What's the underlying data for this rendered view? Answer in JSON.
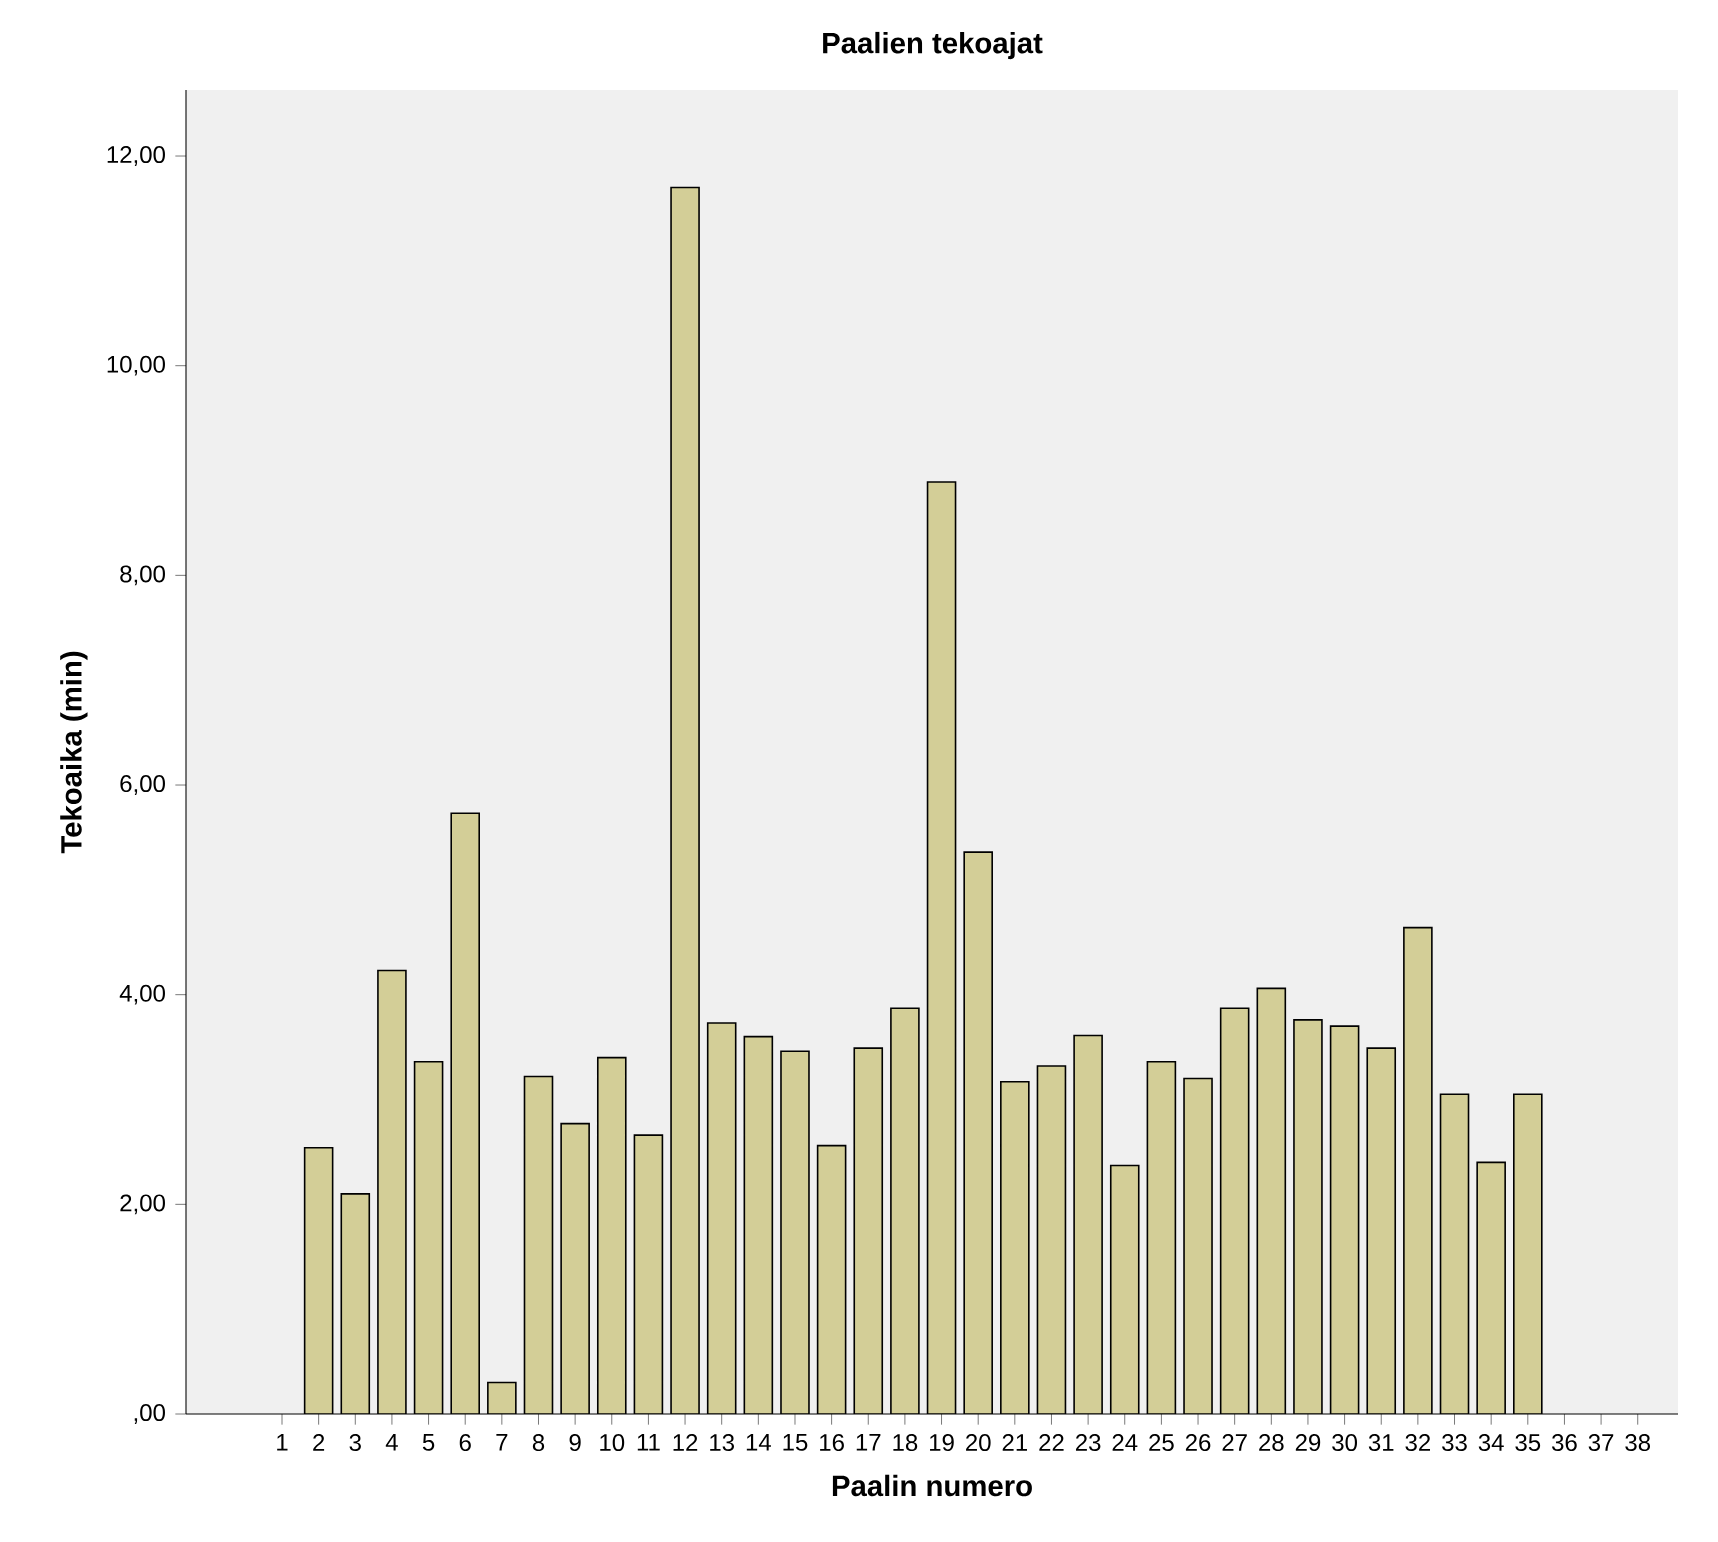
{
  "chart_data": {
    "type": "bar",
    "title": "Paalien tekoajat",
    "xlabel": "Paalin numero",
    "ylabel": "Tekoaika (min)",
    "categories": [
      "1",
      "2",
      "3",
      "4",
      "5",
      "6",
      "7",
      "8",
      "9",
      "10",
      "11",
      "12",
      "13",
      "14",
      "15",
      "16",
      "17",
      "18",
      "19",
      "20",
      "21",
      "22",
      "23",
      "24",
      "25",
      "26",
      "27",
      "28",
      "29",
      "30",
      "31",
      "32",
      "33",
      "34",
      "35",
      "36",
      "37",
      "38"
    ],
    "values": [
      null,
      2.54,
      2.1,
      4.23,
      3.36,
      5.73,
      0.3,
      3.22,
      2.77,
      3.4,
      2.66,
      11.7,
      3.73,
      3.6,
      3.46,
      2.56,
      3.49,
      3.87,
      8.89,
      5.36,
      3.17,
      3.32,
      3.61,
      2.37,
      3.36,
      3.2,
      3.87,
      4.06,
      3.76,
      3.7,
      3.49,
      4.64,
      3.05,
      2.4,
      3.05,
      null,
      null,
      null
    ],
    "color": "#d3ce97",
    "ylim": [
      0,
      12.63
    ],
    "yticks": [
      {
        "value": 0,
        "label": ",00"
      },
      {
        "value": 2,
        "label": "2,00"
      },
      {
        "value": 4,
        "label": "4,00"
      },
      {
        "value": 6,
        "label": "6,00"
      },
      {
        "value": 8,
        "label": "8,00"
      },
      {
        "value": 10,
        "label": "10,00"
      },
      {
        "value": 12,
        "label": "12,00"
      }
    ],
    "grid": false
  }
}
